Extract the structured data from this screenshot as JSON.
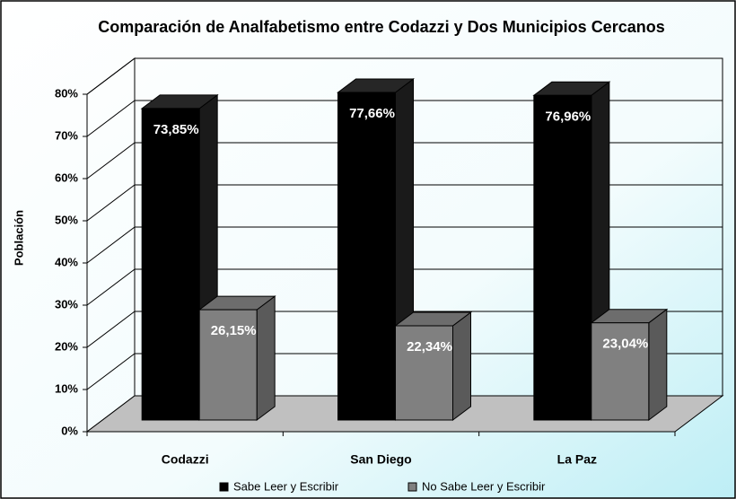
{
  "chart_data": {
    "type": "bar3d",
    "title": "Comparación de Analfabetismo entre Codazzi y Dos Municipios Cercanos",
    "y_label": "Población",
    "categories": [
      "Codazzi",
      "San Diego",
      "La Paz"
    ],
    "series": [
      {
        "name": "Sabe Leer y Escribir",
        "color": "#000000",
        "values": [
          73.85,
          77.66,
          76.96
        ],
        "value_labels": [
          "73,85%",
          "77,66%",
          "76,96%"
        ]
      },
      {
        "name": "No Sabe Leer y Escribir",
        "color": "#808080",
        "values": [
          26.15,
          22.34,
          23.04
        ],
        "value_labels": [
          "26,15%",
          "22,34%",
          "23,04%"
        ]
      }
    ],
    "ylim": [
      0,
      80
    ],
    "yticks": [
      {
        "value": 0,
        "label": "0%"
      },
      {
        "value": 10,
        "label": "10%"
      },
      {
        "value": 20,
        "label": "20%"
      },
      {
        "value": 30,
        "label": "30%"
      },
      {
        "value": 40,
        "label": "40%"
      },
      {
        "value": 50,
        "label": "50%"
      },
      {
        "value": 60,
        "label": "60%"
      },
      {
        "value": 70,
        "label": "70%"
      },
      {
        "value": 80,
        "label": "80%"
      }
    ],
    "grid": true
  }
}
